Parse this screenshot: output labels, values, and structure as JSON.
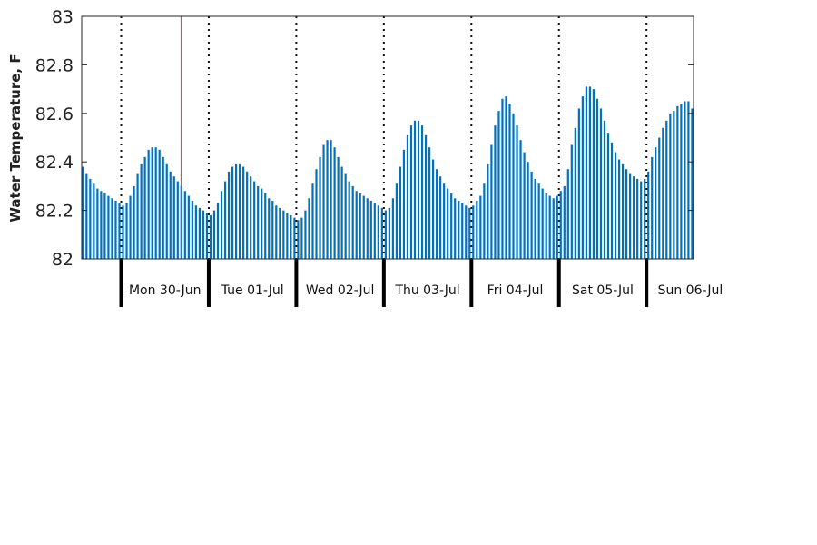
{
  "chart_data": {
    "type": "bar",
    "title": "",
    "xlabel": "",
    "ylabel": "Water Temperature, F",
    "ylim": [
      82,
      83
    ],
    "yticks": [
      82,
      82.2,
      82.4,
      82.6,
      82.8,
      83
    ],
    "ytick_labels": [
      "82",
      "82.2",
      "82.4",
      "82.6",
      "82.8",
      "83"
    ],
    "x_unit": "hours",
    "day_labels": [
      "Mon 30-Jun",
      "Tue 01-Jul",
      "Wed 02-Jul",
      "Thu 03-Jul",
      "Fri 04-Jul",
      "Sat 05-Jul",
      "Sun 06-Jul"
    ],
    "bar_color": "#0072bd",
    "current_time_marker_color": "#ff2a2a",
    "current_time": "Mon 30-Jun 17:00",
    "grid": false,
    "series": [
      {
        "values": [
          82.38,
          82.35,
          82.33,
          82.31,
          82.29,
          82.28,
          82.27,
          82.26,
          82.25,
          82.24,
          82.23,
          82.22,
          82.23,
          82.26,
          82.3,
          82.35,
          82.39,
          82.42,
          82.45,
          82.46,
          82.46,
          82.45,
          82.42,
          82.39,
          82.36,
          82.34,
          82.32,
          82.3,
          82.28,
          82.26,
          82.24,
          82.22,
          82.21,
          82.2,
          82.19,
          82.18,
          82.2,
          82.23,
          82.28,
          82.32,
          82.36,
          82.38,
          82.39,
          82.39,
          82.38,
          82.36,
          82.34,
          82.32,
          82.3,
          82.29,
          82.27,
          82.25,
          82.24,
          82.22,
          82.21,
          82.2,
          82.19,
          82.18,
          82.17,
          82.16,
          82.17,
          82.2,
          82.25,
          82.31,
          82.37,
          82.42,
          82.47,
          82.49,
          82.49,
          82.46,
          82.42,
          82.38,
          82.35,
          82.32,
          82.3,
          82.28,
          82.27,
          82.26,
          82.25,
          82.24,
          82.23,
          82.22,
          82.21,
          82.2,
          82.21,
          82.25,
          82.31,
          82.38,
          82.45,
          82.51,
          82.55,
          82.57,
          82.57,
          82.55,
          82.51,
          82.46,
          82.41,
          82.37,
          82.34,
          82.31,
          82.29,
          82.27,
          82.25,
          82.24,
          82.23,
          82.22,
          82.21,
          82.22,
          82.24,
          82.26,
          82.31,
          82.39,
          82.47,
          82.55,
          82.61,
          82.66,
          82.67,
          82.64,
          82.6,
          82.55,
          82.49,
          82.44,
          82.4,
          82.36,
          82.33,
          82.31,
          82.29,
          82.27,
          82.26,
          82.25,
          82.26,
          82.28,
          82.3,
          82.37,
          82.47,
          82.54,
          82.62,
          82.67,
          82.71,
          82.71,
          82.7,
          82.66,
          82.62,
          82.57,
          82.52,
          82.48,
          82.44,
          82.41,
          82.39,
          82.37,
          82.35,
          82.34,
          82.33,
          82.32,
          82.33,
          82.36,
          82.42,
          82.46,
          82.5,
          82.54,
          82.57,
          82.6,
          82.61,
          82.63,
          82.64,
          82.65,
          82.65,
          82.62
        ]
      }
    ]
  }
}
